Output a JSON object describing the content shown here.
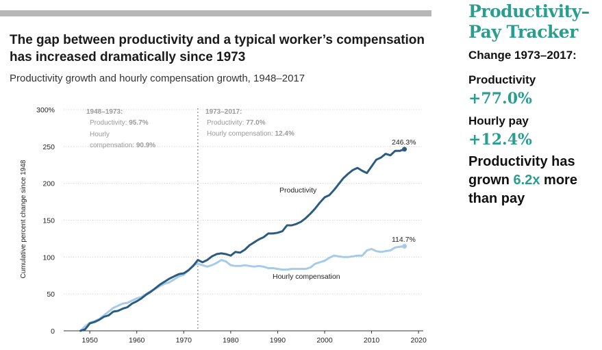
{
  "header": {
    "title": "The gap between productivity and a typical worker’s compensation has increased dramatically since 1973",
    "subtitle": "Productivity growth and hourly compensation growth, 1948–2017"
  },
  "tracker": {
    "title_line1": "Productivity–",
    "title_line2": "Pay Tracker",
    "change_label": "Change 1973–2017:",
    "productivity_label": "Productivity",
    "productivity_value": "+77.0%",
    "pay_label": "Hourly pay",
    "pay_value": "+12.4%",
    "summary_prefix": "Productivity has grown ",
    "summary_highlight": "6.2x",
    "summary_suffix": " more than pay",
    "accent_color": "#2a9d8f"
  },
  "chart_data": {
    "type": "line",
    "ylabel": "Cumulative percent change since 1948",
    "xlim": [
      1944,
      2021
    ],
    "ylim": [
      0,
      300
    ],
    "x_ticks": [
      1950,
      1960,
      1970,
      1980,
      1990,
      2000,
      2010,
      2020
    ],
    "y_ticks": [
      0,
      50,
      100,
      150,
      200,
      250,
      300
    ],
    "y_tick_labels": [
      "0",
      "50",
      "100",
      "150",
      "200",
      "250",
      "300%"
    ],
    "grid": "horizontal dotted",
    "reference_line": {
      "x": 1973
    },
    "annotations": {
      "period1": {
        "title": "1948–1973:",
        "prod_label": "Productivity:",
        "prod_value": "95.7%",
        "comp_label1": "Hourly",
        "comp_label2": "compensation:",
        "comp_value": "90.9%"
      },
      "period2": {
        "title": "1973–2017:",
        "prod_label": "Productivity:",
        "prod_value": "77.0%",
        "comp_label": "Hourly compensation:",
        "comp_value": "12.4%"
      }
    },
    "series": [
      {
        "name": "Productivity",
        "color": "#2b5b7f",
        "end_label": "246.3%",
        "points": [
          [
            1948,
            0
          ],
          [
            1949,
            2
          ],
          [
            1950,
            10
          ],
          [
            1951,
            12
          ],
          [
            1952,
            15
          ],
          [
            1953,
            19
          ],
          [
            1954,
            21
          ],
          [
            1955,
            26
          ],
          [
            1956,
            27
          ],
          [
            1957,
            30
          ],
          [
            1958,
            32
          ],
          [
            1959,
            37
          ],
          [
            1960,
            40
          ],
          [
            1961,
            44
          ],
          [
            1962,
            49
          ],
          [
            1963,
            53
          ],
          [
            1964,
            58
          ],
          [
            1965,
            63
          ],
          [
            1966,
            67
          ],
          [
            1967,
            71
          ],
          [
            1968,
            74
          ],
          [
            1969,
            77
          ],
          [
            1970,
            78
          ],
          [
            1971,
            82
          ],
          [
            1972,
            88
          ],
          [
            1973,
            96
          ],
          [
            1974,
            93
          ],
          [
            1975,
            96
          ],
          [
            1976,
            101
          ],
          [
            1977,
            104
          ],
          [
            1978,
            105
          ],
          [
            1979,
            104
          ],
          [
            1980,
            102
          ],
          [
            1981,
            107
          ],
          [
            1982,
            106
          ],
          [
            1983,
            110
          ],
          [
            1984,
            116
          ],
          [
            1985,
            120
          ],
          [
            1986,
            124
          ],
          [
            1987,
            127
          ],
          [
            1988,
            132
          ],
          [
            1989,
            132
          ],
          [
            1990,
            133
          ],
          [
            1991,
            135
          ],
          [
            1992,
            143
          ],
          [
            1993,
            143
          ],
          [
            1994,
            145
          ],
          [
            1995,
            148
          ],
          [
            1996,
            153
          ],
          [
            1997,
            159
          ],
          [
            1998,
            166
          ],
          [
            1999,
            174
          ],
          [
            2000,
            181
          ],
          [
            2001,
            184
          ],
          [
            2002,
            191
          ],
          [
            2003,
            199
          ],
          [
            2004,
            207
          ],
          [
            2005,
            213
          ],
          [
            2006,
            218
          ],
          [
            2007,
            221
          ],
          [
            2008,
            217
          ],
          [
            2009,
            214
          ],
          [
            2010,
            223
          ],
          [
            2011,
            232
          ],
          [
            2012,
            235
          ],
          [
            2013,
            240
          ],
          [
            2014,
            238
          ],
          [
            2015,
            244
          ],
          [
            2016,
            244
          ],
          [
            2017,
            246.3
          ]
        ]
      },
      {
        "name": "Hourly compensation",
        "color": "#a6cbea",
        "end_label": "114.7%",
        "points": [
          [
            1948,
            0
          ],
          [
            1949,
            6
          ],
          [
            1950,
            11
          ],
          [
            1951,
            13
          ],
          [
            1952,
            16
          ],
          [
            1953,
            21
          ],
          [
            1954,
            26
          ],
          [
            1955,
            31
          ],
          [
            1956,
            34
          ],
          [
            1957,
            37
          ],
          [
            1958,
            38
          ],
          [
            1959,
            41
          ],
          [
            1960,
            44
          ],
          [
            1961,
            46
          ],
          [
            1962,
            50
          ],
          [
            1963,
            54
          ],
          [
            1964,
            57
          ],
          [
            1965,
            61
          ],
          [
            1966,
            64
          ],
          [
            1967,
            66
          ],
          [
            1968,
            70
          ],
          [
            1969,
            74
          ],
          [
            1970,
            76
          ],
          [
            1971,
            82
          ],
          [
            1972,
            89
          ],
          [
            1973,
            91
          ],
          [
            1974,
            89
          ],
          [
            1975,
            87
          ],
          [
            1976,
            89
          ],
          [
            1977,
            92
          ],
          [
            1978,
            96
          ],
          [
            1979,
            94
          ],
          [
            1980,
            89
          ],
          [
            1981,
            88
          ],
          [
            1982,
            88
          ],
          [
            1983,
            89
          ],
          [
            1984,
            88
          ],
          [
            1985,
            87
          ],
          [
            1986,
            88
          ],
          [
            1987,
            87
          ],
          [
            1988,
            85
          ],
          [
            1989,
            85
          ],
          [
            1990,
            84
          ],
          [
            1991,
            83
          ],
          [
            1992,
            83
          ],
          [
            1993,
            84
          ],
          [
            1994,
            84
          ],
          [
            1995,
            84
          ],
          [
            1996,
            84
          ],
          [
            1997,
            86
          ],
          [
            1998,
            91
          ],
          [
            1999,
            93
          ],
          [
            2000,
            95
          ],
          [
            2001,
            99
          ],
          [
            2002,
            102
          ],
          [
            2003,
            101
          ],
          [
            2004,
            100
          ],
          [
            2005,
            100
          ],
          [
            2006,
            101
          ],
          [
            2007,
            102
          ],
          [
            2008,
            102
          ],
          [
            2009,
            109
          ],
          [
            2010,
            111
          ],
          [
            2011,
            108
          ],
          [
            2012,
            107
          ],
          [
            2013,
            108
          ],
          [
            2014,
            109
          ],
          [
            2015,
            113
          ],
          [
            2016,
            114
          ],
          [
            2017,
            114.7
          ]
        ]
      }
    ]
  }
}
